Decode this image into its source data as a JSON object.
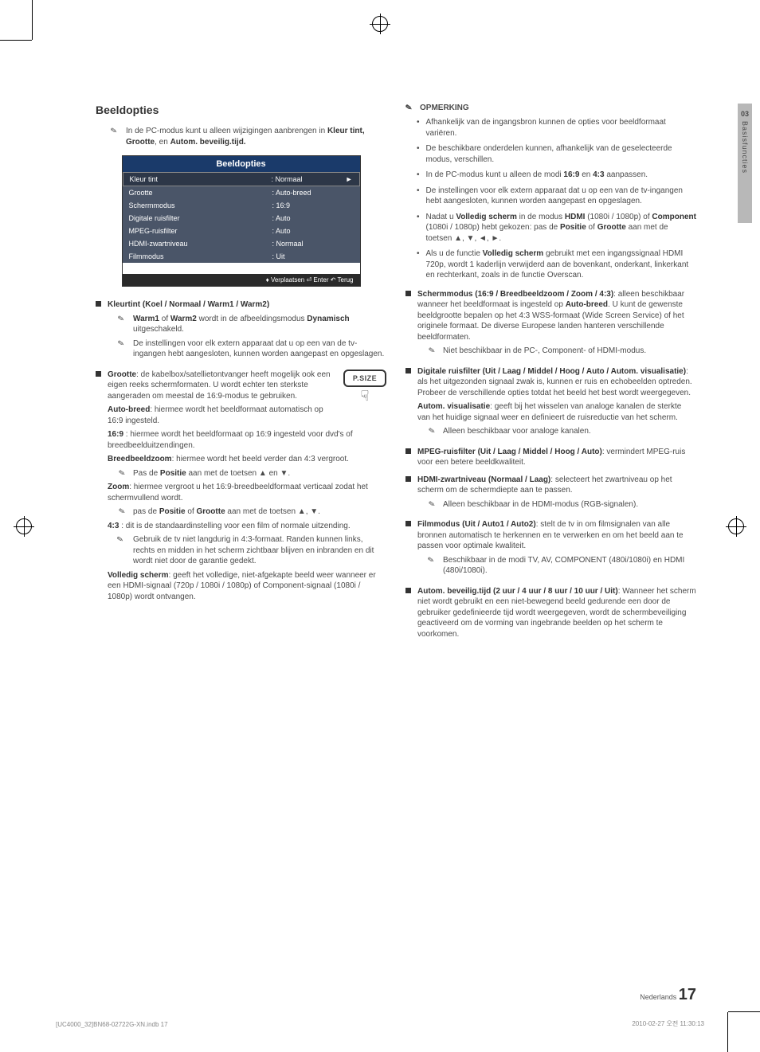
{
  "sideTab": {
    "num": "03",
    "label": "Basisfuncties"
  },
  "leftCol": {
    "title": "Beeldopties",
    "introNote": "In de PC-modus kunt u alleen wijzigingen aanbrengen in <b>Kleur tint, Grootte</b>, en <b>Autom. beveilig.tijd.</b>",
    "menu": {
      "header": "Beeldopties",
      "rows": [
        {
          "label": "Kleur tint",
          "value": ": Normaal",
          "hl": true,
          "arrow": "►"
        },
        {
          "label": "Grootte",
          "value": ": Auto-breed"
        },
        {
          "label": "Schermmodus",
          "value": ": 16:9"
        },
        {
          "label": "Digitale ruisfilter",
          "value": ": Auto"
        },
        {
          "label": "MPEG-ruisfilter",
          "value": ": Auto"
        },
        {
          "label": "HDMI-zwartniveau",
          "value": ": Normaal"
        },
        {
          "label": "Filmmodus",
          "value": ": Uit"
        }
      ],
      "footer": "♦ Verplaatsen  ⏎ Enter  ↶ Terug"
    },
    "items": [
      {
        "heading": "Kleurtint (Koel / Normaal / Warm1 / Warm2)",
        "notes": [
          "<b>Warm1</b> of <b>Warm2</b> wordt in de afbeeldingsmodus <b>Dynamisch</b> uitgeschakeld.",
          "De instellingen voor elk extern apparaat dat u op een van de tv-ingangen hebt aangesloten, kunnen worden aangepast en opgeslagen."
        ]
      },
      {
        "heading": "Grootte",
        "body": ": de kabelbox/satellietontvanger heeft mogelijk ook een eigen reeks schermformaten. U wordt echter ten sterkste aangeraden om meestal de 16:9-modus te gebruiken.",
        "psize": {
          "label": "P.SIZE"
        },
        "defs": [
          {
            "t": "Auto-breed",
            "d": ": hiermee wordt het beeldformaat automatisch op 16:9 ingesteld."
          },
          {
            "t": "16:9",
            "d": " : hiermee wordt het beeldformaat op 16:9 ingesteld voor dvd's of breedbeelduitzendingen."
          },
          {
            "t": "Breedbeeldzoom",
            "d": ": hiermee wordt het beeld verder dan 4:3 vergroot."
          }
        ],
        "subnote1": "Pas de <b>Positie</b> aan met de toetsen ▲ en ▼.",
        "defs2": [
          {
            "t": "Zoom",
            "d": ": hiermee vergroot u het 16:9-breedbeeldformaat verticaal zodat het schermvullend wordt."
          }
        ],
        "subnote2": "pas de <b>Positie</b> of <b>Grootte</b> aan met de toetsen ▲, ▼.",
        "defs3": [
          {
            "t": "4:3",
            "d": " : dit is de standaardinstelling voor een film of normale uitzending."
          }
        ],
        "subnote3": "Gebruik de tv niet langdurig in 4:3-formaat. Randen kunnen links, rechts en midden in het scherm zichtbaar blijven en inbranden en dit wordt niet door de garantie gedekt.",
        "defs4": [
          {
            "t": "Volledig scherm",
            "d": ": geeft het volledige, niet-afgekapte beeld weer wanneer er een HDMI-signaal (720p / 1080i / 1080p) of Component-signaal (1080i / 1080p) wordt ontvangen."
          }
        ]
      }
    ]
  },
  "rightCol": {
    "opmerking": "OPMERKING",
    "dots": [
      "Afhankelijk van de ingangsbron kunnen de opties voor beeldformaat variëren.",
      "De beschikbare onderdelen kunnen, afhankelijk van de geselecteerde modus, verschillen.",
      "In de PC-modus kunt u alleen de modi <b>16:9</b> en <b>4:3</b> aanpassen.",
      "De instellingen voor elk extern apparaat dat u op een van de tv-ingangen hebt aangesloten, kunnen worden aangepast en opgeslagen.",
      "Nadat u <b>Volledig scherm</b> in de modus <b>HDMI</b> (1080i / 1080p) of <b>Component</b> (1080i / 1080p) hebt gekozen: pas de <b>Positie</b> of <b>Grootte</b> aan met de toetsen ▲, ▼, ◄, ►.",
      "Als u de functie <b>Volledig scherm</b> gebruikt met een ingangssignaal HDMI 720p, wordt 1 kaderlijn verwijderd aan de bovenkant, onderkant, linkerkant en rechterkant, zoals in de functie Overscan."
    ],
    "bullets": [
      {
        "heading": "Schermmodus (16:9 / Breedbeeldzoom / Zoom / 4:3)",
        "body": ": alleen beschikbaar wanneer het beeldformaat is ingesteld op <b>Auto-breed</b>. U kunt de gewenste beeldgrootte bepalen op het 4:3 WSS-formaat (Wide Screen Service) of het originele formaat. De diverse Europese landen hanteren verschillende beeldformaten.",
        "note": "Niet beschikbaar in de PC-, Component- of HDMI-modus."
      },
      {
        "heading": "Digitale ruisfilter (Uit / Laag / Middel / Hoog / Auto / Autom. visualisatie)",
        "body": ": als het uitgezonden signaal zwak is, kunnen er ruis en echobeelden optreden. Probeer de verschillende opties totdat het beeld het best wordt weergegeven.",
        "extra": "<b>Autom. visualisatie</b>: geeft bij het wisselen van analoge kanalen de sterkte van het huidige signaal weer en definieert de ruisreductie van het scherm.",
        "note": "Alleen beschikbaar voor analoge kanalen."
      },
      {
        "heading": "MPEG-ruisfilter (Uit / Laag / Middel / Hoog / Auto)",
        "body": ": vermindert MPEG-ruis voor een betere beeldkwaliteit."
      },
      {
        "heading": "HDMI-zwartniveau (Normaal / Laag)",
        "body": ": selecteert het zwartniveau op het scherm om de schermdiepte aan te passen.",
        "note": "Alleen beschikbaar in de HDMI-modus (RGB-signalen)."
      },
      {
        "heading": "Filmmodus (Uit / Auto1 / Auto2)",
        "body": ": stelt de tv in om filmsignalen van alle bronnen automatisch te herkennen en te verwerken en om het beeld aan te passen voor optimale kwaliteit.",
        "note": "Beschikbaar in de modi TV, AV, COMPONENT (480i/1080i) en HDMI (480i/1080i)."
      },
      {
        "heading": "Autom. beveilig.tijd (2 uur / 4 uur / 8 uur / 10 uur / Uit)",
        "body": ":  Wanneer het scherm niet wordt gebruikt en een niet-bewegend beeld gedurende een door de gebruiker gedefinieerde tijd wordt weergegeven, wordt de schermbeveiliging geactiveerd om de vorming van ingebrande beelden op het scherm te voorkomen."
      }
    ]
  },
  "footer": {
    "lang": "Nederlands",
    "page": "17",
    "printLeft": "[UC4000_32]BN68-02722G-XN.indb   17",
    "printRight": "2010-02-27   오전 11:30:13"
  }
}
